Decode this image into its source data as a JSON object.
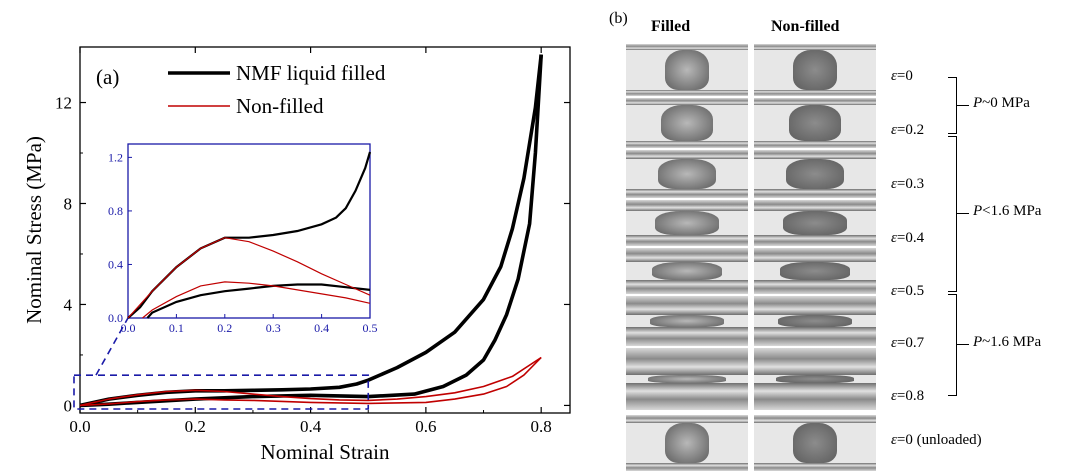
{
  "panel_a": {
    "panel_label": "(a)",
    "chart_data": {
      "type": "line",
      "xlabel": "Nominal Strain",
      "ylabel": "Nominal Stress (MPa)",
      "xlim": [
        0,
        0.85
      ],
      "ylim": [
        -0.3,
        14.2
      ],
      "xticks": [
        0.0,
        0.2,
        0.4,
        0.6,
        0.8
      ],
      "xtick_labels": [
        "0.0",
        "0.2",
        "0.4",
        "0.6",
        "0.8"
      ],
      "yticks": [
        0,
        4,
        8,
        12
      ],
      "ytick_labels": [
        "0",
        "4",
        "8",
        "12"
      ],
      "legend_placement": "top-center",
      "series": [
        {
          "name": "NMF liquid filled",
          "color": "#000000",
          "loading": [
            [
              0,
              0
            ],
            [
              0.05,
              0.25
            ],
            [
              0.1,
              0.4
            ],
            [
              0.15,
              0.52
            ],
            [
              0.2,
              0.58
            ],
            [
              0.25,
              0.58
            ],
            [
              0.3,
              0.6
            ],
            [
              0.35,
              0.62
            ],
            [
              0.4,
              0.65
            ],
            [
              0.45,
              0.72
            ],
            [
              0.48,
              0.85
            ],
            [
              0.5,
              1.0
            ],
            [
              0.55,
              1.5
            ],
            [
              0.6,
              2.1
            ],
            [
              0.65,
              2.9
            ],
            [
              0.7,
              4.2
            ],
            [
              0.73,
              5.5
            ],
            [
              0.75,
              7.0
            ],
            [
              0.77,
              9.0
            ],
            [
              0.79,
              11.8
            ],
            [
              0.8,
              13.9
            ]
          ],
          "unloading": [
            [
              0.8,
              13.9
            ],
            [
              0.79,
              10.0
            ],
            [
              0.78,
              7.2
            ],
            [
              0.76,
              5.0
            ],
            [
              0.74,
              3.6
            ],
            [
              0.72,
              2.6
            ],
            [
              0.7,
              1.8
            ],
            [
              0.67,
              1.2
            ],
            [
              0.63,
              0.75
            ],
            [
              0.58,
              0.45
            ],
            [
              0.5,
              0.35
            ],
            [
              0.4,
              0.4
            ],
            [
              0.3,
              0.35
            ],
            [
              0.2,
              0.25
            ],
            [
              0.1,
              0.12
            ],
            [
              0.05,
              0.05
            ],
            [
              0,
              0
            ]
          ]
        },
        {
          "name": "Non-filled",
          "color": "#c00000",
          "loading": [
            [
              0,
              0
            ],
            [
              0.05,
              0.25
            ],
            [
              0.1,
              0.42
            ],
            [
              0.15,
              0.55
            ],
            [
              0.2,
              0.6
            ],
            [
              0.25,
              0.55
            ],
            [
              0.3,
              0.45
            ],
            [
              0.35,
              0.35
            ],
            [
              0.4,
              0.27
            ],
            [
              0.45,
              0.22
            ],
            [
              0.5,
              0.2
            ],
            [
              0.55,
              0.25
            ],
            [
              0.6,
              0.35
            ],
            [
              0.65,
              0.5
            ],
            [
              0.7,
              0.75
            ],
            [
              0.75,
              1.15
            ],
            [
              0.8,
              1.9
            ]
          ],
          "unloading": [
            [
              0.8,
              1.9
            ],
            [
              0.77,
              1.2
            ],
            [
              0.74,
              0.75
            ],
            [
              0.7,
              0.45
            ],
            [
              0.65,
              0.25
            ],
            [
              0.6,
              0.12
            ],
            [
              0.5,
              0.08
            ],
            [
              0.4,
              0.12
            ],
            [
              0.3,
              0.2
            ],
            [
              0.25,
              0.22
            ],
            [
              0.2,
              0.25
            ],
            [
              0.15,
              0.22
            ],
            [
              0.1,
              0.15
            ],
            [
              0.05,
              0.06
            ],
            [
              0,
              0
            ]
          ]
        }
      ]
    },
    "inset_chart_data": {
      "type": "line",
      "xlim": [
        0,
        0.5
      ],
      "ylim": [
        0,
        1.3
      ],
      "xticks": [
        0.0,
        0.1,
        0.2,
        0.3,
        0.4,
        0.5
      ],
      "xtick_labels": [
        "0.0",
        "0.1",
        "0.2",
        "0.3",
        "0.4",
        "0.5"
      ],
      "yticks": [
        0.0,
        0.4,
        0.8,
        1.2
      ],
      "ytick_labels": [
        "0.0",
        "0.4",
        "0.8",
        "1.2"
      ],
      "axis_color": "#1a1aa8",
      "series": [
        {
          "name": "NMF liquid filled",
          "color": "#000000",
          "loading": [
            [
              0,
              0
            ],
            [
              0.025,
              0.08
            ],
            [
              0.05,
              0.2
            ],
            [
              0.1,
              0.38
            ],
            [
              0.15,
              0.52
            ],
            [
              0.2,
              0.6
            ],
            [
              0.25,
              0.6
            ],
            [
              0.3,
              0.62
            ],
            [
              0.35,
              0.65
            ],
            [
              0.4,
              0.7
            ],
            [
              0.43,
              0.75
            ],
            [
              0.45,
              0.82
            ],
            [
              0.47,
              0.95
            ],
            [
              0.49,
              1.12
            ],
            [
              0.5,
              1.24
            ]
          ],
          "unloading": [
            [
              0.5,
              0.21
            ],
            [
              0.45,
              0.23
            ],
            [
              0.4,
              0.25
            ],
            [
              0.35,
              0.25
            ],
            [
              0.3,
              0.24
            ],
            [
              0.25,
              0.22
            ],
            [
              0.2,
              0.2
            ],
            [
              0.15,
              0.17
            ],
            [
              0.1,
              0.12
            ],
            [
              0.05,
              0.04
            ],
            [
              0.04,
              0
            ]
          ]
        },
        {
          "name": "Non-filled",
          "color": "#c00000",
          "loading": [
            [
              0,
              0
            ],
            [
              0.05,
              0.2
            ],
            [
              0.1,
              0.38
            ],
            [
              0.15,
              0.52
            ],
            [
              0.2,
              0.6
            ],
            [
              0.25,
              0.57
            ],
            [
              0.3,
              0.5
            ],
            [
              0.35,
              0.42
            ],
            [
              0.4,
              0.33
            ],
            [
              0.45,
              0.25
            ],
            [
              0.5,
              0.17
            ]
          ],
          "unloading": [
            [
              0.5,
              0.11
            ],
            [
              0.45,
              0.15
            ],
            [
              0.4,
              0.18
            ],
            [
              0.35,
              0.21
            ],
            [
              0.3,
              0.24
            ],
            [
              0.25,
              0.26
            ],
            [
              0.2,
              0.27
            ],
            [
              0.15,
              0.24
            ],
            [
              0.1,
              0.16
            ],
            [
              0.05,
              0.06
            ],
            [
              0.03,
              0
            ]
          ]
        }
      ]
    }
  },
  "panel_b": {
    "panel_label": "(b)",
    "col_filled": "Filled",
    "col_nonfilled": "Non-filled",
    "strain_labels": [
      "0",
      "0.2",
      "0.3",
      "0.4",
      "0.5",
      "0.7",
      "0.8",
      "0 (unloaded)"
    ],
    "strain_symbol": "ε",
    "strain_eq": "=",
    "pressure_symbol": "P",
    "pressure_labels": [
      "~0 MPa",
      "<1.6 MPa",
      "~1.6 MPa"
    ]
  }
}
